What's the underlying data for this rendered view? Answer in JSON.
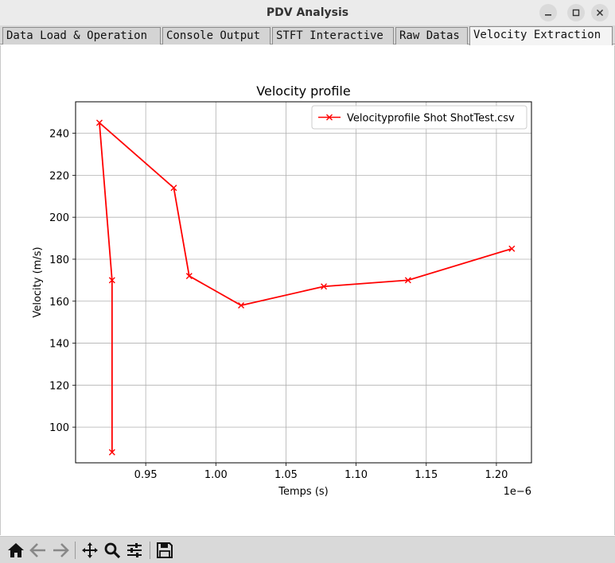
{
  "window": {
    "title": "PDV Analysis"
  },
  "tabs": [
    {
      "label": "Data Load & Operation",
      "active": false
    },
    {
      "label": "Console Output",
      "active": false
    },
    {
      "label": "STFT Interactive",
      "active": false
    },
    {
      "label": "Raw Datas",
      "active": false
    },
    {
      "label": "Velocity Extraction",
      "active": true
    }
  ],
  "toolbar": {
    "icons": [
      "home-icon",
      "back-icon",
      "forward-icon",
      "pan-icon",
      "zoom-icon",
      "configure-icon",
      "save-icon"
    ]
  },
  "chart_data": {
    "type": "line",
    "title": "Velocity profile",
    "xlabel": "Temps (s)",
    "ylabel": "Velocity (m/s)",
    "x_offset_text": "1e−6",
    "xlim": [
      0.9,
      1.225
    ],
    "ylim": [
      83,
      255
    ],
    "xticks": [
      0.95,
      1.0,
      1.05,
      1.1,
      1.15,
      1.2
    ],
    "xtick_labels": [
      "0.95",
      "1.00",
      "1.05",
      "1.10",
      "1.15",
      "1.20"
    ],
    "yticks": [
      100,
      120,
      140,
      160,
      180,
      200,
      220,
      240
    ],
    "ytick_labels": [
      "100",
      "120",
      "140",
      "160",
      "180",
      "200",
      "220",
      "240"
    ],
    "grid": true,
    "legend_position": "top-right",
    "series": [
      {
        "name": "Velocityprofile Shot ShotTest.csv",
        "color": "#ff0000",
        "marker": "x",
        "x": [
          0.926,
          0.926,
          0.917,
          0.97,
          0.981,
          1.018,
          1.077,
          1.137,
          1.211
        ],
        "y": [
          88,
          170,
          245,
          214,
          172,
          158,
          167,
          170,
          185
        ]
      }
    ]
  }
}
